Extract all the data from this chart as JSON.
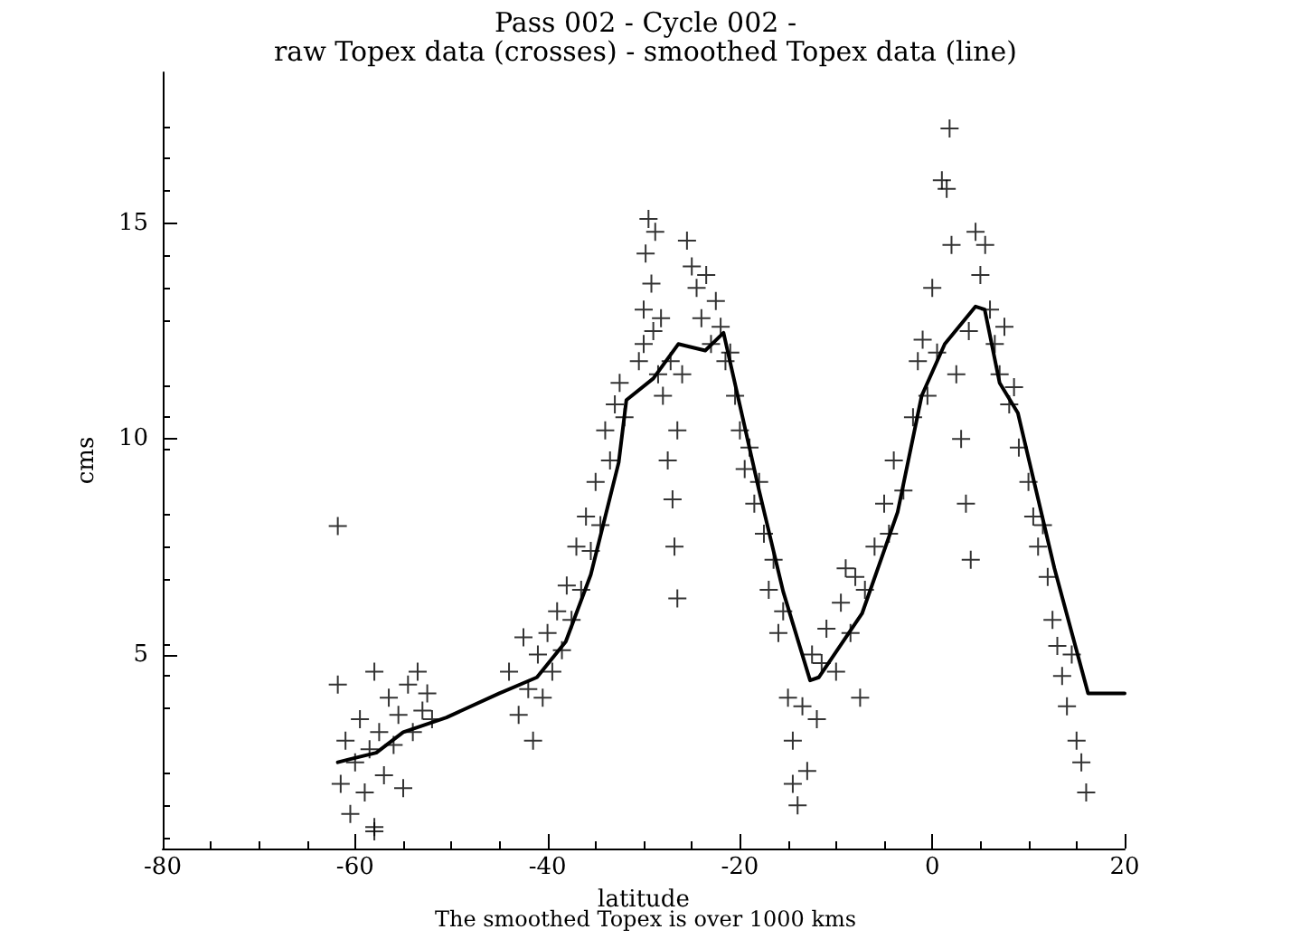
{
  "chart_data": {
    "type": "scatter",
    "title": "Pass 002 - Cycle 002 -",
    "subtitle": "raw Topex data (crosses) - smoothed Topex data (line)",
    "xlabel": "latitude",
    "ylabel": "cms",
    "annotations": [
      "The smoothed Topex is over 1000 kms"
    ],
    "xlim": [
      -80,
      20
    ],
    "xticks": [
      -80,
      -60,
      -40,
      -20,
      0,
      20
    ],
    "ylim": [
      0.5,
      18.5
    ],
    "yticks": [
      5,
      10,
      15
    ],
    "grid": false,
    "series": [
      {
        "marker": "cross",
        "color": "#000000",
        "x": [
          -61.8,
          -61.8,
          -61.5,
          -61,
          -60.5,
          -60,
          -59.5,
          -59,
          -58.5,
          -58,
          -58,
          -58,
          -57.5,
          -57,
          -56.5,
          -56,
          -55.5,
          -55,
          -54.5,
          -54,
          -53.5,
          -53,
          -52.5,
          -52,
          -44,
          -43,
          -42.5,
          -42,
          -41.5,
          -41,
          -40.5,
          -40,
          -39.5,
          -39,
          -38.5,
          -38,
          -37.5,
          -37,
          -36.5,
          -36,
          -35.5,
          -35,
          -34.5,
          -34,
          -33.5,
          -33,
          -32.5,
          -32,
          -30.5,
          -30,
          -30,
          -29.8,
          -29.5,
          -29.2,
          -29,
          -28.8,
          -28.5,
          -28.2,
          -28,
          -27.5,
          -27.2,
          -27,
          -26.8,
          -26.5,
          -26.5,
          -26,
          -25.5,
          -25,
          -24.5,
          -24,
          -23.5,
          -23,
          -22.5,
          -22,
          -21.5,
          -21,
          -20.5,
          -20,
          -19.5,
          -19,
          -18.5,
          -18,
          -17.5,
          -17,
          -16.5,
          -16,
          -15.5,
          -15,
          -14.5,
          -14.5,
          -14,
          -13.5,
          -13,
          -12.5,
          -12,
          -11.5,
          -11,
          -10,
          -9.5,
          -9,
          -8.5,
          -8,
          -7.5,
          -7,
          -6,
          -5,
          -4.5,
          -4,
          -3,
          -2,
          -1.5,
          -1,
          -0.5,
          0,
          0.5,
          1,
          1.5,
          1.8,
          2,
          2.5,
          3,
          3.5,
          3.8,
          4,
          4.5,
          5,
          5.5,
          6,
          6.5,
          7,
          7.5,
          8,
          8.5,
          9,
          10,
          10.5,
          11,
          11.5,
          12,
          12.5,
          13,
          13.5,
          14,
          14.5,
          15,
          15.5,
          16
        ],
        "values": [
          7.98,
          4.3,
          2.0,
          3.0,
          1.3,
          2.5,
          3.5,
          1.8,
          2.8,
          1.0,
          4.6,
          0.9,
          3.2,
          2.2,
          4.0,
          2.9,
          3.6,
          1.9,
          4.3,
          3.2,
          4.6,
          3.7,
          4.1,
          3.5,
          4.6,
          3.6,
          5.4,
          4.2,
          3.0,
          5.0,
          4.0,
          5.5,
          4.6,
          6.0,
          5.1,
          6.6,
          5.8,
          7.5,
          6.5,
          8.2,
          7.4,
          9.0,
          8.0,
          10.2,
          9.5,
          10.8,
          11.3,
          10.5,
          11.8,
          13.0,
          12.2,
          14.3,
          15.1,
          13.6,
          12.5,
          14.8,
          11.5,
          12.8,
          11.0,
          9.5,
          11.8,
          8.6,
          7.5,
          6.3,
          10.2,
          11.5,
          14.6,
          14.0,
          13.5,
          12.8,
          13.8,
          12.2,
          13.2,
          12.6,
          11.8,
          12.0,
          11.0,
          10.2,
          9.3,
          9.8,
          8.5,
          9.0,
          7.8,
          6.5,
          7.2,
          5.5,
          6.0,
          4.0,
          3.0,
          2.0,
          1.5,
          3.8,
          2.3,
          5.0,
          3.5,
          4.8,
          5.6,
          4.6,
          6.2,
          7.0,
          5.5,
          6.8,
          4.0,
          6.5,
          7.5,
          8.5,
          7.8,
          9.5,
          8.8,
          10.5,
          11.8,
          12.3,
          11.0,
          13.5,
          12.0,
          16.0,
          15.8,
          17.2,
          14.5,
          11.5,
          10.0,
          8.5,
          12.5,
          7.2,
          14.8,
          13.8,
          14.5,
          13.0,
          12.2,
          11.5,
          12.6,
          10.8,
          11.2,
          9.8,
          9.0,
          8.2,
          7.5,
          8.0,
          6.8,
          5.8,
          5.2,
          4.5,
          3.8,
          5.0,
          3.0,
          2.5,
          1.8
        ]
      },
      {
        "type": "line",
        "marker": "none",
        "line_style": "solid",
        "color": "#000000",
        "x": [
          -61.8,
          -60.6,
          -57.8,
          -55,
          -50.5,
          -45,
          -41.1,
          -38.1,
          -35.5,
          -32.6,
          -31.8,
          -29,
          -26.4,
          -23.6,
          -21.7,
          -18,
          -15.5,
          -12.7,
          -11.8,
          -7.3,
          -3.6,
          -1.1,
          1.3,
          4.5,
          5.45,
          7,
          8.9,
          12.7,
          16.2,
          20
        ],
        "values": [
          2.5,
          2.57,
          2.72,
          3.2,
          3.54,
          4.1,
          4.47,
          5.3,
          6.85,
          9.45,
          10.9,
          11.4,
          12.2,
          12.05,
          12.46,
          8.8,
          6.46,
          4.4,
          4.47,
          5.95,
          8.3,
          11.0,
          12.2,
          13.07,
          13.0,
          11.3,
          10.6,
          7.0,
          4.1,
          4.1
        ]
      }
    ]
  }
}
